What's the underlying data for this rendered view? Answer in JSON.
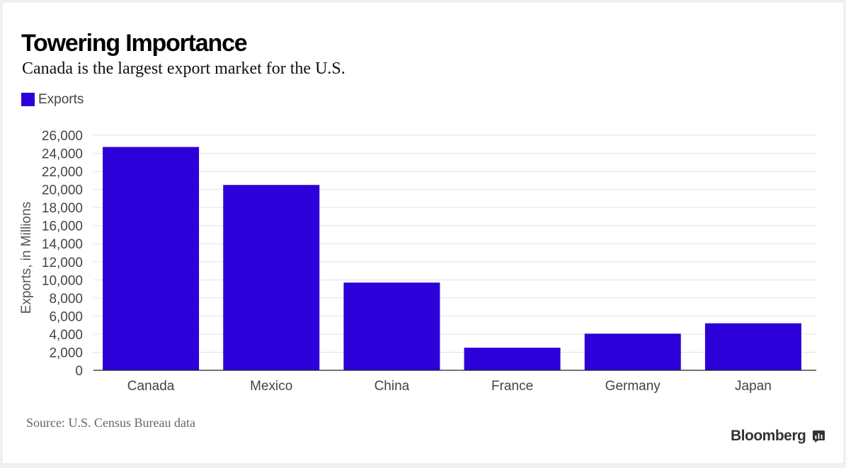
{
  "header": {
    "title": "Towering Importance",
    "subtitle": "Canada is the largest export market for the U.S."
  },
  "legend": {
    "label": "Exports"
  },
  "footer": {
    "source": "Source: U.S. Census Bureau data",
    "brand": "Bloomberg",
    "brand_icon": "bloomberg-terminal-icon"
  },
  "colors": {
    "bar": "#2c00d8",
    "grid": "#e2e2e2",
    "axis": "#222222"
  },
  "chart_data": {
    "type": "bar",
    "title": "Towering Importance",
    "subtitle": "Canada is the largest export market for the U.S.",
    "categories": [
      "Canada",
      "Mexico",
      "China",
      "France",
      "Germany",
      "Japan"
    ],
    "series": [
      {
        "name": "Exports",
        "values": [
          24700,
          20500,
          9700,
          2500,
          4050,
          5200
        ]
      }
    ],
    "xlabel": "",
    "ylabel": "Exports, in Millions",
    "ylim": [
      0,
      26000
    ],
    "yticks": [
      0,
      2000,
      4000,
      6000,
      8000,
      10000,
      12000,
      14000,
      16000,
      18000,
      20000,
      22000,
      24000,
      26000
    ],
    "ytick_labels": [
      "0",
      "2,000",
      "4,000",
      "6,000",
      "8,000",
      "10,000",
      "12,000",
      "14,000",
      "16,000",
      "18,000",
      "20,000",
      "22,000",
      "24,000",
      "26,000"
    ],
    "grid": true,
    "legend_position": "top-left"
  }
}
